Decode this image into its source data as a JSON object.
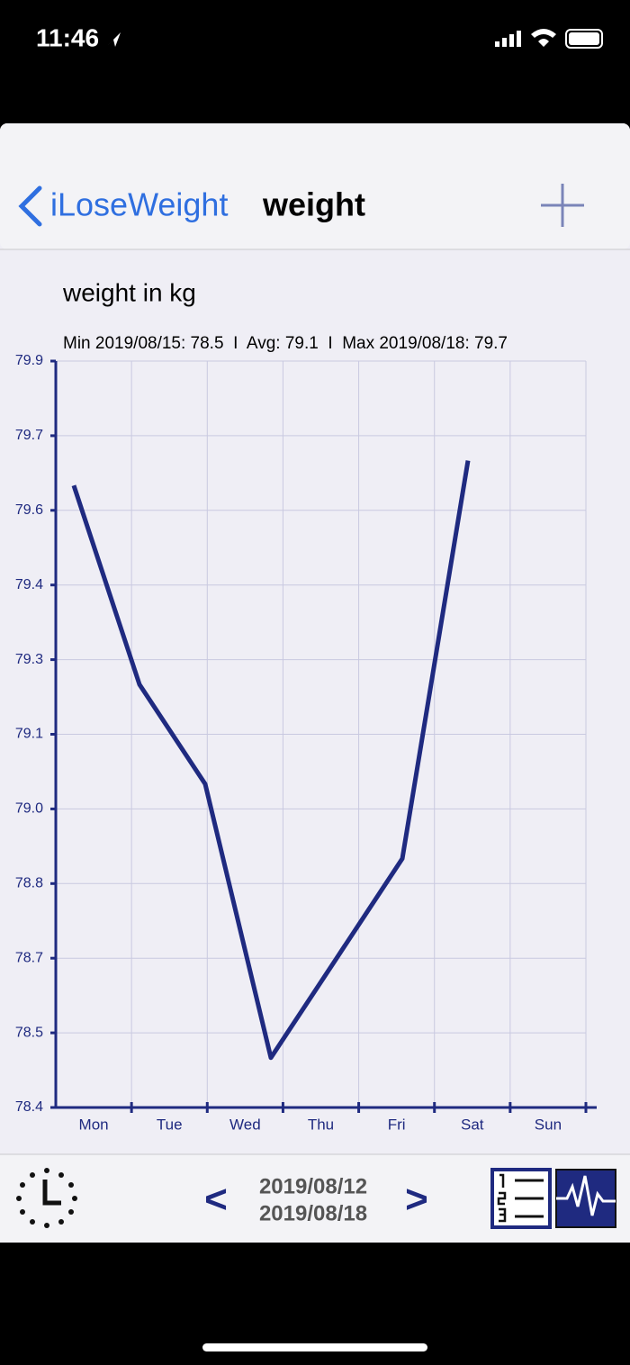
{
  "status_bar": {
    "time": "11:46"
  },
  "nav": {
    "back": "iLoseWeight",
    "title": "weight"
  },
  "chart_data": {
    "type": "line",
    "title": "weight in kg",
    "subtitle": "Min 2019/08/15: 78.5  I  Avg: 79.1  I  Max 2019/08/18: 79.7",
    "categories": [
      "Mon",
      "Tue",
      "Wed",
      "Thu",
      "Fri",
      "Sat",
      "Sun"
    ],
    "values": [
      79.65,
      79.25,
      79.05,
      78.5,
      78.7,
      78.9,
      79.7
    ],
    "color": "#1f2a80",
    "ylim": [
      78.4,
      79.9
    ],
    "yticks": [
      78.4,
      {
        "value": 78.55,
        "label": "78.5"
      },
      78.7,
      {
        "value": 78.85,
        "label": "78.8"
      },
      {
        "value": 79,
        "label": "79.0"
      },
      {
        "value": 79.15,
        "label": "79.1"
      },
      79.3,
      {
        "value": 79.45,
        "label": "79.4"
      },
      79.6,
      {
        "value": 79.75,
        "label": "79.7"
      },
      79.9
    ],
    "grid": true
  },
  "footer": {
    "start_date": "2019/08/12",
    "end_date": "2019/08/18",
    "prev": "<",
    "next": ">"
  }
}
